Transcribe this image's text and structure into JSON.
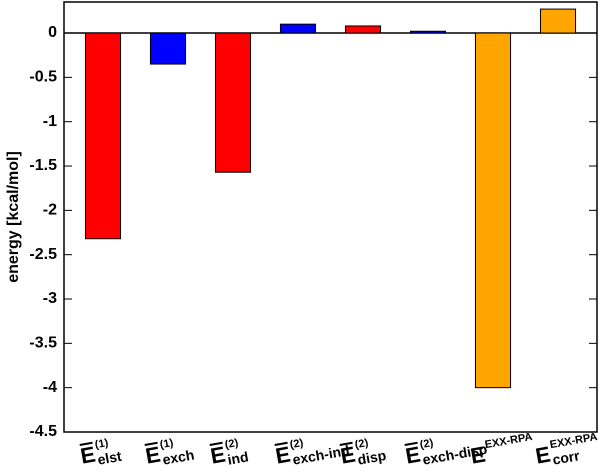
{
  "chart_data": {
    "type": "bar",
    "y_label": "energy [kcal/mol]",
    "categories": [
      {
        "symbol": "E",
        "sup": "(1)",
        "sub": "elst",
        "overbar": true
      },
      {
        "symbol": "E",
        "sup": "(1)",
        "sub": "exch",
        "overbar": true
      },
      {
        "symbol": "E",
        "sup": "(2)",
        "sub": "ind",
        "overbar": true
      },
      {
        "symbol": "E",
        "sup": "(2)",
        "sub": "exch-ind",
        "overbar": true
      },
      {
        "symbol": "E",
        "sup": "(2)",
        "sub": "disp",
        "overbar": true
      },
      {
        "symbol": "E",
        "sup": "(2)",
        "sub": "exch-disp",
        "overbar": true
      },
      {
        "symbol": "E",
        "sup": "EXX-RPA",
        "overbar": false
      },
      {
        "symbol": "E",
        "sup": "EXX-RPA",
        "sub": "corr",
        "overbar": false
      }
    ],
    "values": [
      -2.32,
      -0.35,
      -1.57,
      0.1,
      0.08,
      0.02,
      -4.0,
      0.27
    ],
    "colors": [
      "#ff0000",
      "#0000ff",
      "#ff0000",
      "#0000ff",
      "#ff0000",
      "#0000ff",
      "#ffa500",
      "#ffa500"
    ],
    "ylim": [
      -4.5,
      0.35
    ],
    "yticks": [
      -4.5,
      -4,
      -3.5,
      -3,
      -2.5,
      -2,
      -1.5,
      -1,
      -0.5,
      0
    ],
    "grid": false
  }
}
